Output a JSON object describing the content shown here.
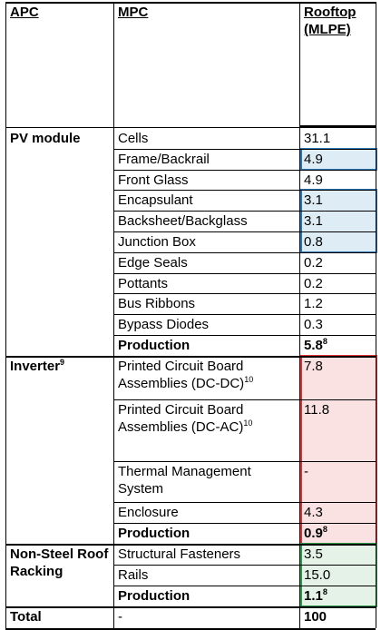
{
  "header": {
    "apc": "APC",
    "mpc": "MPC",
    "rooftop": "Rooftop (MLPE)"
  },
  "groups": [
    {
      "apc": "PV module",
      "rows": [
        {
          "mpc": "Cells",
          "value": "31.1"
        },
        {
          "mpc": "Frame/Backrail",
          "value": "4.9"
        },
        {
          "mpc": "Front Glass",
          "value": "4.9"
        },
        {
          "mpc": "Encapsulant",
          "value": "3.1"
        },
        {
          "mpc": "Backsheet/Backglass",
          "value": "3.1"
        },
        {
          "mpc": "Junction Box",
          "value": "0.8"
        },
        {
          "mpc": "Edge Seals",
          "value": "0.2"
        },
        {
          "mpc": "Pottants",
          "value": "0.2"
        },
        {
          "mpc": "Bus Ribbons",
          "value": "1.2"
        },
        {
          "mpc": "Bypass Diodes",
          "value": "0.3"
        },
        {
          "mpc": "Production",
          "value": "5.8",
          "value_note": "8",
          "bold": true
        }
      ]
    },
    {
      "apc": "Inverter",
      "apc_note": "9",
      "rows": [
        {
          "mpc": "Printed Circuit Board Assemblies (DC-DC)",
          "mpc_note": "10",
          "value": "7.8"
        },
        {
          "mpc": "Printed Circuit Board Assemblies (DC-AC)",
          "mpc_note": "10",
          "value": "11.8"
        },
        {
          "mpc": "Thermal Management System",
          "value": "-"
        },
        {
          "mpc": "Enclosure",
          "value": "4.3"
        },
        {
          "mpc": "Production",
          "value": "0.9",
          "value_note": "8",
          "bold": true
        }
      ]
    },
    {
      "apc": "Non-Steel Roof Racking",
      "rows": [
        {
          "mpc": "Structural Fasteners",
          "value": "3.5"
        },
        {
          "mpc": "Rails",
          "value": "15.0"
        },
        {
          "mpc": "Production",
          "value": "1.1",
          "value_note": "8",
          "bold": true
        }
      ]
    }
  ],
  "total": {
    "apc": "Total",
    "mpc": "-",
    "value": "100"
  }
}
